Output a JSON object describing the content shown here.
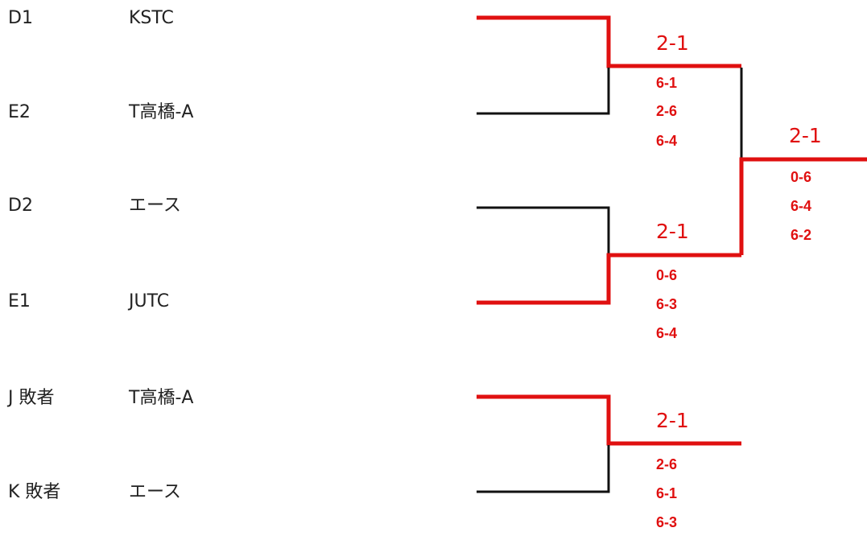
{
  "entries": [
    {
      "seed": "D1",
      "team": "KSTC"
    },
    {
      "seed": "E2",
      "team": "T高橋-A"
    },
    {
      "seed": "D2",
      "team": "エース"
    },
    {
      "seed": "E1",
      "team": "JUTC"
    },
    {
      "seed": "J 敗者",
      "team": "T高橋-A"
    },
    {
      "seed": "K 敗者",
      "team": "エース"
    }
  ],
  "matches": [
    {
      "result": "2-1",
      "sets": [
        "6-1",
        "2-6",
        "6-4"
      ]
    },
    {
      "result": "2-1",
      "sets": [
        "0-6",
        "6-3",
        "6-4"
      ]
    },
    {
      "result": "2-1",
      "sets": [
        "0-6",
        "6-4",
        "6-2"
      ]
    },
    {
      "result": "2-1",
      "sets": [
        "2-6",
        "6-1",
        "6-3"
      ]
    }
  ],
  "colors": {
    "winner_line": "#e01010",
    "loser_line": "#111111",
    "score_text": "#e01010"
  }
}
